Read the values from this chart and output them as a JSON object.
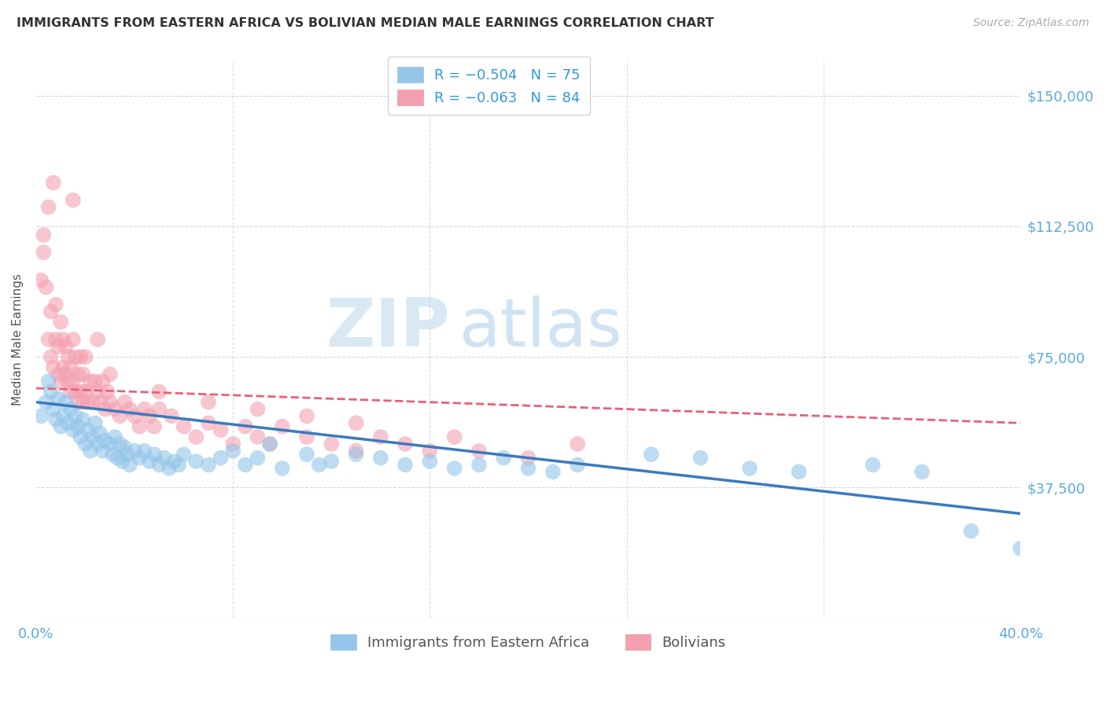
{
  "title": "IMMIGRANTS FROM EASTERN AFRICA VS BOLIVIAN MEDIAN MALE EARNINGS CORRELATION CHART",
  "source": "Source: ZipAtlas.com",
  "ylabel": "Median Male Earnings",
  "yticks": [
    0,
    37500,
    75000,
    112500,
    150000
  ],
  "ytick_labels": [
    "",
    "$37,500",
    "$75,000",
    "$112,500",
    "$150,000"
  ],
  "xlim": [
    0.0,
    0.4
  ],
  "ylim": [
    0,
    160000
  ],
  "legend_r_blue": "R = −0.504",
  "legend_n_blue": "N = 75",
  "legend_r_pink": "R = −0.063",
  "legend_n_pink": "N = 84",
  "legend_label_blue": "Immigrants from Eastern Africa",
  "legend_label_pink": "Bolivians",
  "color_blue": "#93c6e8",
  "color_pink": "#f4a0b0",
  "color_blue_line": "#3a7abf",
  "color_pink_line": "#e8607a",
  "color_axis_labels": "#5aaae0",
  "watermark_zip": "ZIP",
  "watermark_atlas": "atlas",
  "blue_line_x0": 0.0,
  "blue_line_y0": 62000,
  "blue_line_x1": 0.4,
  "blue_line_y1": 30000,
  "pink_line_x0": 0.0,
  "pink_line_y0": 66000,
  "pink_line_x1": 0.4,
  "pink_line_y1": 56000,
  "blue_scatter_x": [
    0.002,
    0.004,
    0.005,
    0.006,
    0.007,
    0.008,
    0.009,
    0.01,
    0.011,
    0.012,
    0.013,
    0.014,
    0.015,
    0.016,
    0.017,
    0.018,
    0.019,
    0.02,
    0.021,
    0.022,
    0.023,
    0.024,
    0.025,
    0.026,
    0.027,
    0.028,
    0.03,
    0.031,
    0.032,
    0.033,
    0.034,
    0.035,
    0.036,
    0.037,
    0.038,
    0.04,
    0.042,
    0.044,
    0.046,
    0.048,
    0.05,
    0.052,
    0.054,
    0.056,
    0.058,
    0.06,
    0.065,
    0.07,
    0.075,
    0.08,
    0.085,
    0.09,
    0.095,
    0.1,
    0.11,
    0.115,
    0.12,
    0.13,
    0.14,
    0.15,
    0.16,
    0.17,
    0.18,
    0.19,
    0.2,
    0.21,
    0.22,
    0.25,
    0.27,
    0.29,
    0.31,
    0.34,
    0.36,
    0.38,
    0.4
  ],
  "blue_scatter_y": [
    58000,
    62000,
    68000,
    65000,
    60000,
    57000,
    63000,
    55000,
    58000,
    62000,
    56000,
    60000,
    54000,
    58000,
    55000,
    52000,
    57000,
    50000,
    54000,
    48000,
    52000,
    56000,
    50000,
    53000,
    48000,
    51000,
    50000,
    47000,
    52000,
    46000,
    50000,
    45000,
    49000,
    47000,
    44000,
    48000,
    46000,
    48000,
    45000,
    47000,
    44000,
    46000,
    43000,
    45000,
    44000,
    47000,
    45000,
    44000,
    46000,
    48000,
    44000,
    46000,
    50000,
    43000,
    47000,
    44000,
    45000,
    47000,
    46000,
    44000,
    45000,
    43000,
    44000,
    46000,
    43000,
    42000,
    44000,
    47000,
    46000,
    43000,
    42000,
    44000,
    42000,
    25000,
    20000
  ],
  "pink_scatter_x": [
    0.002,
    0.003,
    0.004,
    0.005,
    0.006,
    0.006,
    0.007,
    0.008,
    0.008,
    0.009,
    0.009,
    0.01,
    0.01,
    0.011,
    0.011,
    0.012,
    0.012,
    0.013,
    0.013,
    0.014,
    0.014,
    0.015,
    0.015,
    0.016,
    0.016,
    0.017,
    0.017,
    0.018,
    0.018,
    0.019,
    0.019,
    0.02,
    0.02,
    0.021,
    0.022,
    0.023,
    0.024,
    0.025,
    0.026,
    0.027,
    0.028,
    0.029,
    0.03,
    0.032,
    0.034,
    0.036,
    0.038,
    0.04,
    0.042,
    0.044,
    0.046,
    0.048,
    0.05,
    0.055,
    0.06,
    0.065,
    0.07,
    0.075,
    0.08,
    0.085,
    0.09,
    0.095,
    0.1,
    0.11,
    0.12,
    0.13,
    0.14,
    0.15,
    0.16,
    0.17,
    0.18,
    0.2,
    0.22,
    0.03,
    0.05,
    0.07,
    0.09,
    0.11,
    0.13,
    0.015,
    0.007,
    0.005,
    0.003,
    0.025
  ],
  "pink_scatter_y": [
    97000,
    105000,
    95000,
    80000,
    75000,
    88000,
    72000,
    80000,
    90000,
    70000,
    78000,
    68000,
    85000,
    72000,
    80000,
    70000,
    78000,
    68000,
    75000,
    65000,
    72000,
    68000,
    80000,
    65000,
    75000,
    62000,
    70000,
    65000,
    75000,
    62000,
    70000,
    65000,
    75000,
    62000,
    68000,
    62000,
    68000,
    65000,
    62000,
    68000,
    60000,
    65000,
    62000,
    60000,
    58000,
    62000,
    60000,
    58000,
    55000,
    60000,
    58000,
    55000,
    60000,
    58000,
    55000,
    52000,
    56000,
    54000,
    50000,
    55000,
    52000,
    50000,
    55000,
    52000,
    50000,
    48000,
    52000,
    50000,
    48000,
    52000,
    48000,
    46000,
    50000,
    70000,
    65000,
    62000,
    60000,
    58000,
    56000,
    120000,
    125000,
    118000,
    110000,
    80000
  ]
}
